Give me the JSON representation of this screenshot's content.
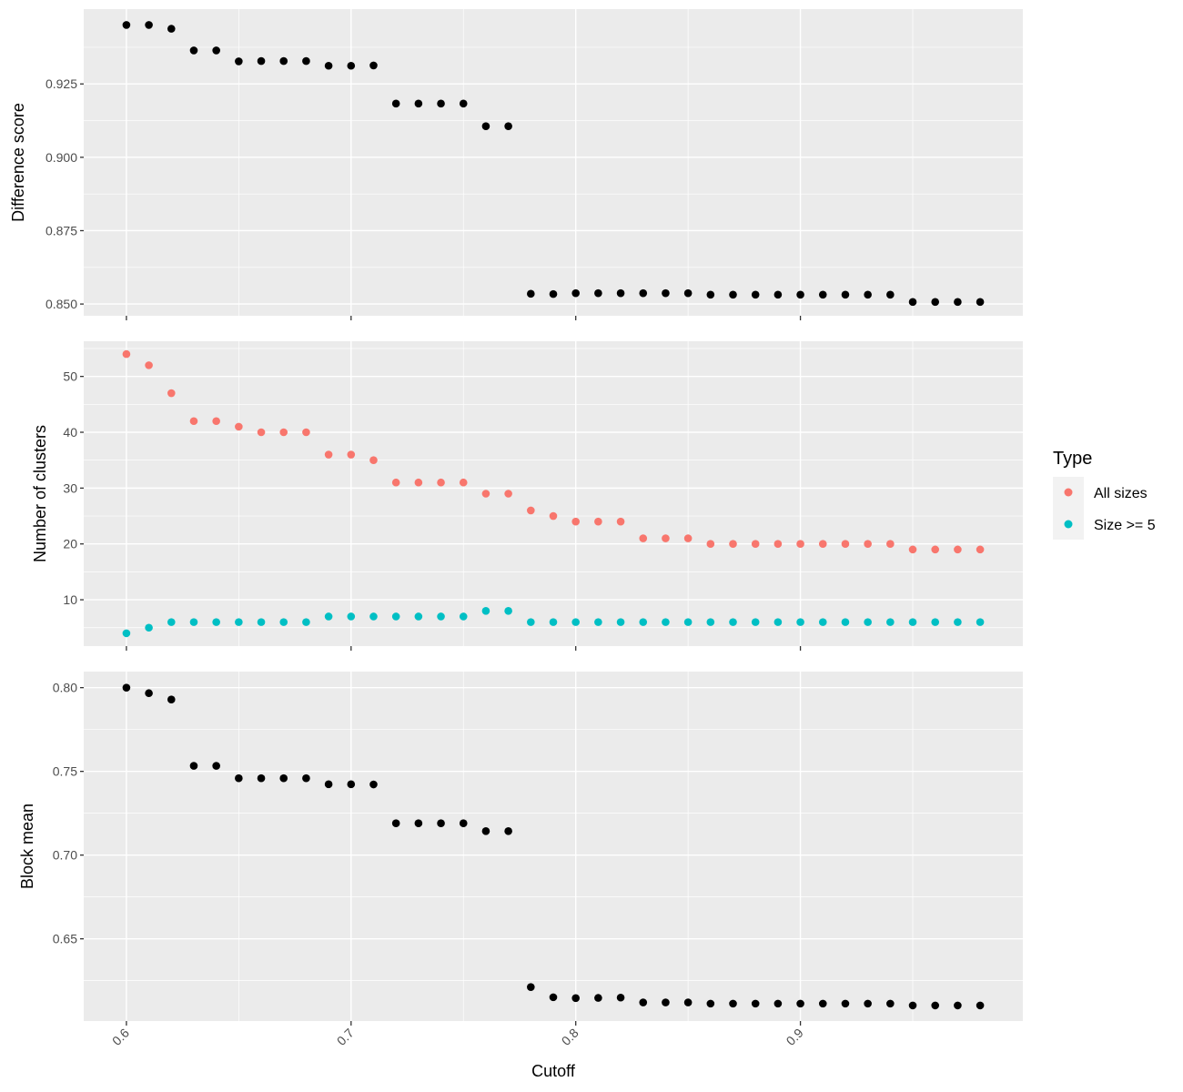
{
  "chart_data": {
    "type": "scatter",
    "xlabel": "Cutoff",
    "x_ticks": [
      "0.6",
      "0.7",
      "0.8",
      "0.9"
    ],
    "x_tick_values": [
      0.6,
      0.7,
      0.8,
      0.9
    ],
    "xlim": [
      0.581,
      0.999
    ],
    "x": [
      0.6,
      0.61,
      0.62,
      0.63,
      0.64,
      0.65,
      0.66,
      0.67,
      0.68,
      0.69,
      0.7,
      0.71,
      0.72,
      0.73,
      0.74,
      0.75,
      0.76,
      0.77,
      0.78,
      0.79,
      0.8,
      0.81,
      0.82,
      0.83,
      0.84,
      0.85,
      0.86,
      0.87,
      0.88,
      0.89,
      0.9,
      0.91,
      0.92,
      0.93,
      0.94,
      0.95,
      0.96,
      0.97,
      0.98
    ],
    "grid": true,
    "panels": [
      {
        "ylabel": "Difference score",
        "ylim": [
          0.846,
          0.9505
        ],
        "y_ticks": [
          "0.850",
          "0.875",
          "0.900",
          "0.925"
        ],
        "y_tick_values": [
          0.85,
          0.875,
          0.9,
          0.925
        ],
        "show_x_labels": false,
        "series": [
          {
            "name": "Difference score",
            "color": "#000000",
            "values": [
              0.9451,
              0.9451,
              0.9438,
              0.9364,
              0.9364,
              0.9327,
              0.9328,
              0.9328,
              0.9328,
              0.9312,
              0.9312,
              0.9313,
              0.9183,
              0.9183,
              0.9183,
              0.9183,
              0.9106,
              0.9106,
              0.8535,
              0.8534,
              0.8537,
              0.8537,
              0.8537,
              0.8537,
              0.8537,
              0.8537,
              0.8532,
              0.8532,
              0.8532,
              0.8532,
              0.8532,
              0.8532,
              0.8532,
              0.8532,
              0.8532,
              0.8507,
              0.8507,
              0.8507,
              0.8507
            ]
          }
        ]
      },
      {
        "ylabel": "Number of clusters",
        "ylim": [
          1.7,
          56.3
        ],
        "y_ticks": [
          "10",
          "20",
          "30",
          "40",
          "50"
        ],
        "y_tick_values": [
          10,
          20,
          30,
          40,
          50
        ],
        "show_x_labels": false,
        "series": [
          {
            "name": "All sizes",
            "color": "#F8766D",
            "values": [
              54,
              52,
              47,
              42,
              42,
              41,
              40,
              40,
              40,
              36,
              36,
              35,
              31,
              31,
              31,
              31,
              29,
              29,
              26,
              25,
              24,
              24,
              24,
              21,
              21,
              21,
              20,
              20,
              20,
              20,
              20,
              20,
              20,
              20,
              20,
              19,
              19,
              19,
              19
            ]
          },
          {
            "name": "Size >= 5",
            "color": "#00BFC4",
            "values": [
              4,
              5,
              6,
              6,
              6,
              6,
              6,
              6,
              6,
              7,
              7,
              7,
              7,
              7,
              7,
              7,
              8,
              8,
              6,
              6,
              6,
              6,
              6,
              6,
              6,
              6,
              6,
              6,
              6,
              6,
              6,
              6,
              6,
              6,
              6,
              6,
              6,
              6,
              6
            ]
          }
        ]
      },
      {
        "ylabel": "Block mean",
        "ylim": [
          0.6009,
          0.8096
        ],
        "y_ticks": [
          "0.65",
          "0.70",
          "0.75",
          "0.80"
        ],
        "y_tick_values": [
          0.65,
          0.7,
          0.75,
          0.8
        ],
        "show_x_labels": true,
        "series": [
          {
            "name": "Block mean",
            "color": "#000000",
            "values": [
              0.8,
              0.7967,
              0.7929,
              0.7533,
              0.7533,
              0.7459,
              0.7459,
              0.7459,
              0.7459,
              0.7423,
              0.7423,
              0.7422,
              0.719,
              0.719,
              0.719,
              0.719,
              0.7143,
              0.7143,
              0.6212,
              0.6151,
              0.6146,
              0.6147,
              0.6149,
              0.612,
              0.612,
              0.612,
              0.6113,
              0.6113,
              0.6113,
              0.6113,
              0.6113,
              0.6113,
              0.6113,
              0.6113,
              0.6113,
              0.6102,
              0.6102,
              0.6102,
              0.6102
            ]
          }
        ]
      }
    ],
    "legend": {
      "title": "Type",
      "position": "right",
      "entries": [
        {
          "label": "All sizes",
          "color": "#F8766D"
        },
        {
          "label": "Size >= 5",
          "color": "#00BFC4"
        }
      ]
    }
  }
}
